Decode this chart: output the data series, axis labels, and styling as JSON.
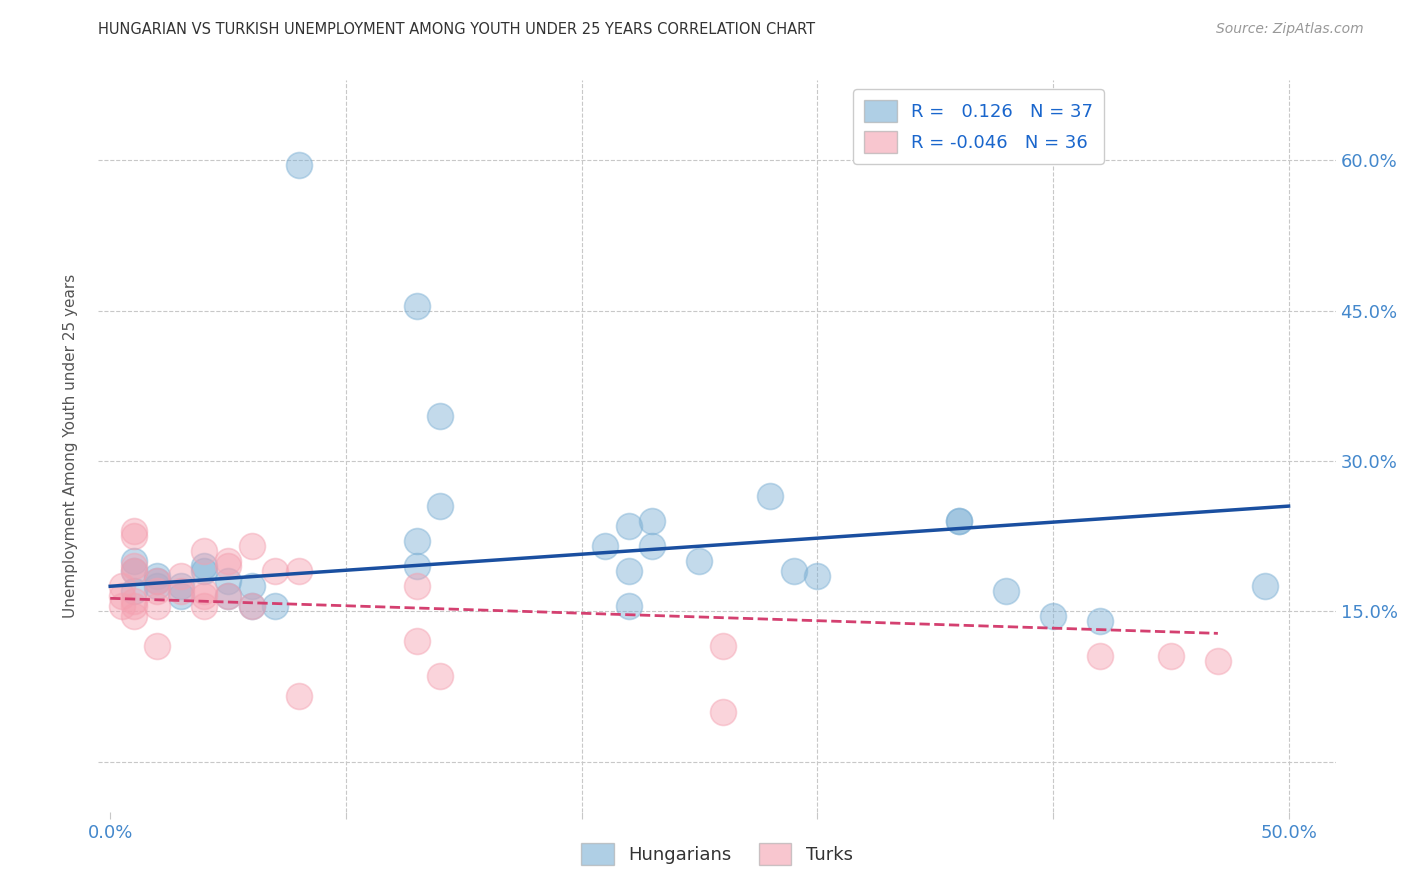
{
  "title": "HUNGARIAN VS TURKISH UNEMPLOYMENT AMONG YOUTH UNDER 25 YEARS CORRELATION CHART",
  "source": "Source: ZipAtlas.com",
  "ylabel": "Unemployment Among Youth under 25 years",
  "xlim": [
    -0.005,
    0.52
  ],
  "ylim": [
    -0.05,
    0.68
  ],
  "yticks": [
    0.0,
    0.15,
    0.3,
    0.45,
    0.6
  ],
  "xticks": [
    0.0,
    0.1,
    0.2,
    0.3,
    0.4,
    0.5
  ],
  "background_color": "#ffffff",
  "grid_color": "#c8c8c8",
  "blue_color": "#7bafd4",
  "pink_color": "#f4a0b0",
  "blue_line_color": "#1a4fa0",
  "pink_line_color": "#d44070",
  "legend_label_1": "R =   0.126   N = 37",
  "legend_label_2": "R = -0.046   N = 36",
  "blue_scatter_x": [
    0.08,
    0.13,
    0.14,
    0.14,
    0.22,
    0.23,
    0.28,
    0.36,
    0.36,
    0.01,
    0.01,
    0.02,
    0.02,
    0.02,
    0.03,
    0.04,
    0.04,
    0.05,
    0.05,
    0.06,
    0.06,
    0.07,
    0.13,
    0.13,
    0.21,
    0.22,
    0.22,
    0.23,
    0.25,
    0.29,
    0.3,
    0.38,
    0.4,
    0.42,
    0.49,
    0.01,
    0.03
  ],
  "blue_scatter_y": [
    0.595,
    0.455,
    0.345,
    0.255,
    0.235,
    0.24,
    0.265,
    0.24,
    0.24,
    0.2,
    0.19,
    0.185,
    0.18,
    0.175,
    0.175,
    0.195,
    0.19,
    0.18,
    0.165,
    0.175,
    0.155,
    0.155,
    0.22,
    0.195,
    0.215,
    0.19,
    0.155,
    0.215,
    0.2,
    0.19,
    0.185,
    0.17,
    0.145,
    0.14,
    0.175,
    0.17,
    0.165
  ],
  "pink_scatter_x": [
    0.005,
    0.005,
    0.005,
    0.01,
    0.01,
    0.01,
    0.01,
    0.01,
    0.01,
    0.01,
    0.02,
    0.02,
    0.02,
    0.02,
    0.03,
    0.03,
    0.04,
    0.04,
    0.04,
    0.04,
    0.05,
    0.05,
    0.05,
    0.06,
    0.06,
    0.07,
    0.08,
    0.13,
    0.13,
    0.14,
    0.26,
    0.42,
    0.45,
    0.47,
    0.08,
    0.26
  ],
  "pink_scatter_y": [
    0.175,
    0.165,
    0.155,
    0.145,
    0.155,
    0.16,
    0.19,
    0.195,
    0.225,
    0.23,
    0.115,
    0.155,
    0.17,
    0.18,
    0.17,
    0.185,
    0.17,
    0.165,
    0.155,
    0.21,
    0.2,
    0.195,
    0.165,
    0.215,
    0.155,
    0.19,
    0.19,
    0.175,
    0.12,
    0.085,
    0.115,
    0.105,
    0.105,
    0.1,
    0.065,
    0.05
  ],
  "blue_line_x": [
    0.0,
    0.5
  ],
  "blue_line_y": [
    0.175,
    0.255
  ],
  "pink_line_x": [
    0.0,
    0.47
  ],
  "pink_line_y": [
    0.163,
    0.128
  ]
}
